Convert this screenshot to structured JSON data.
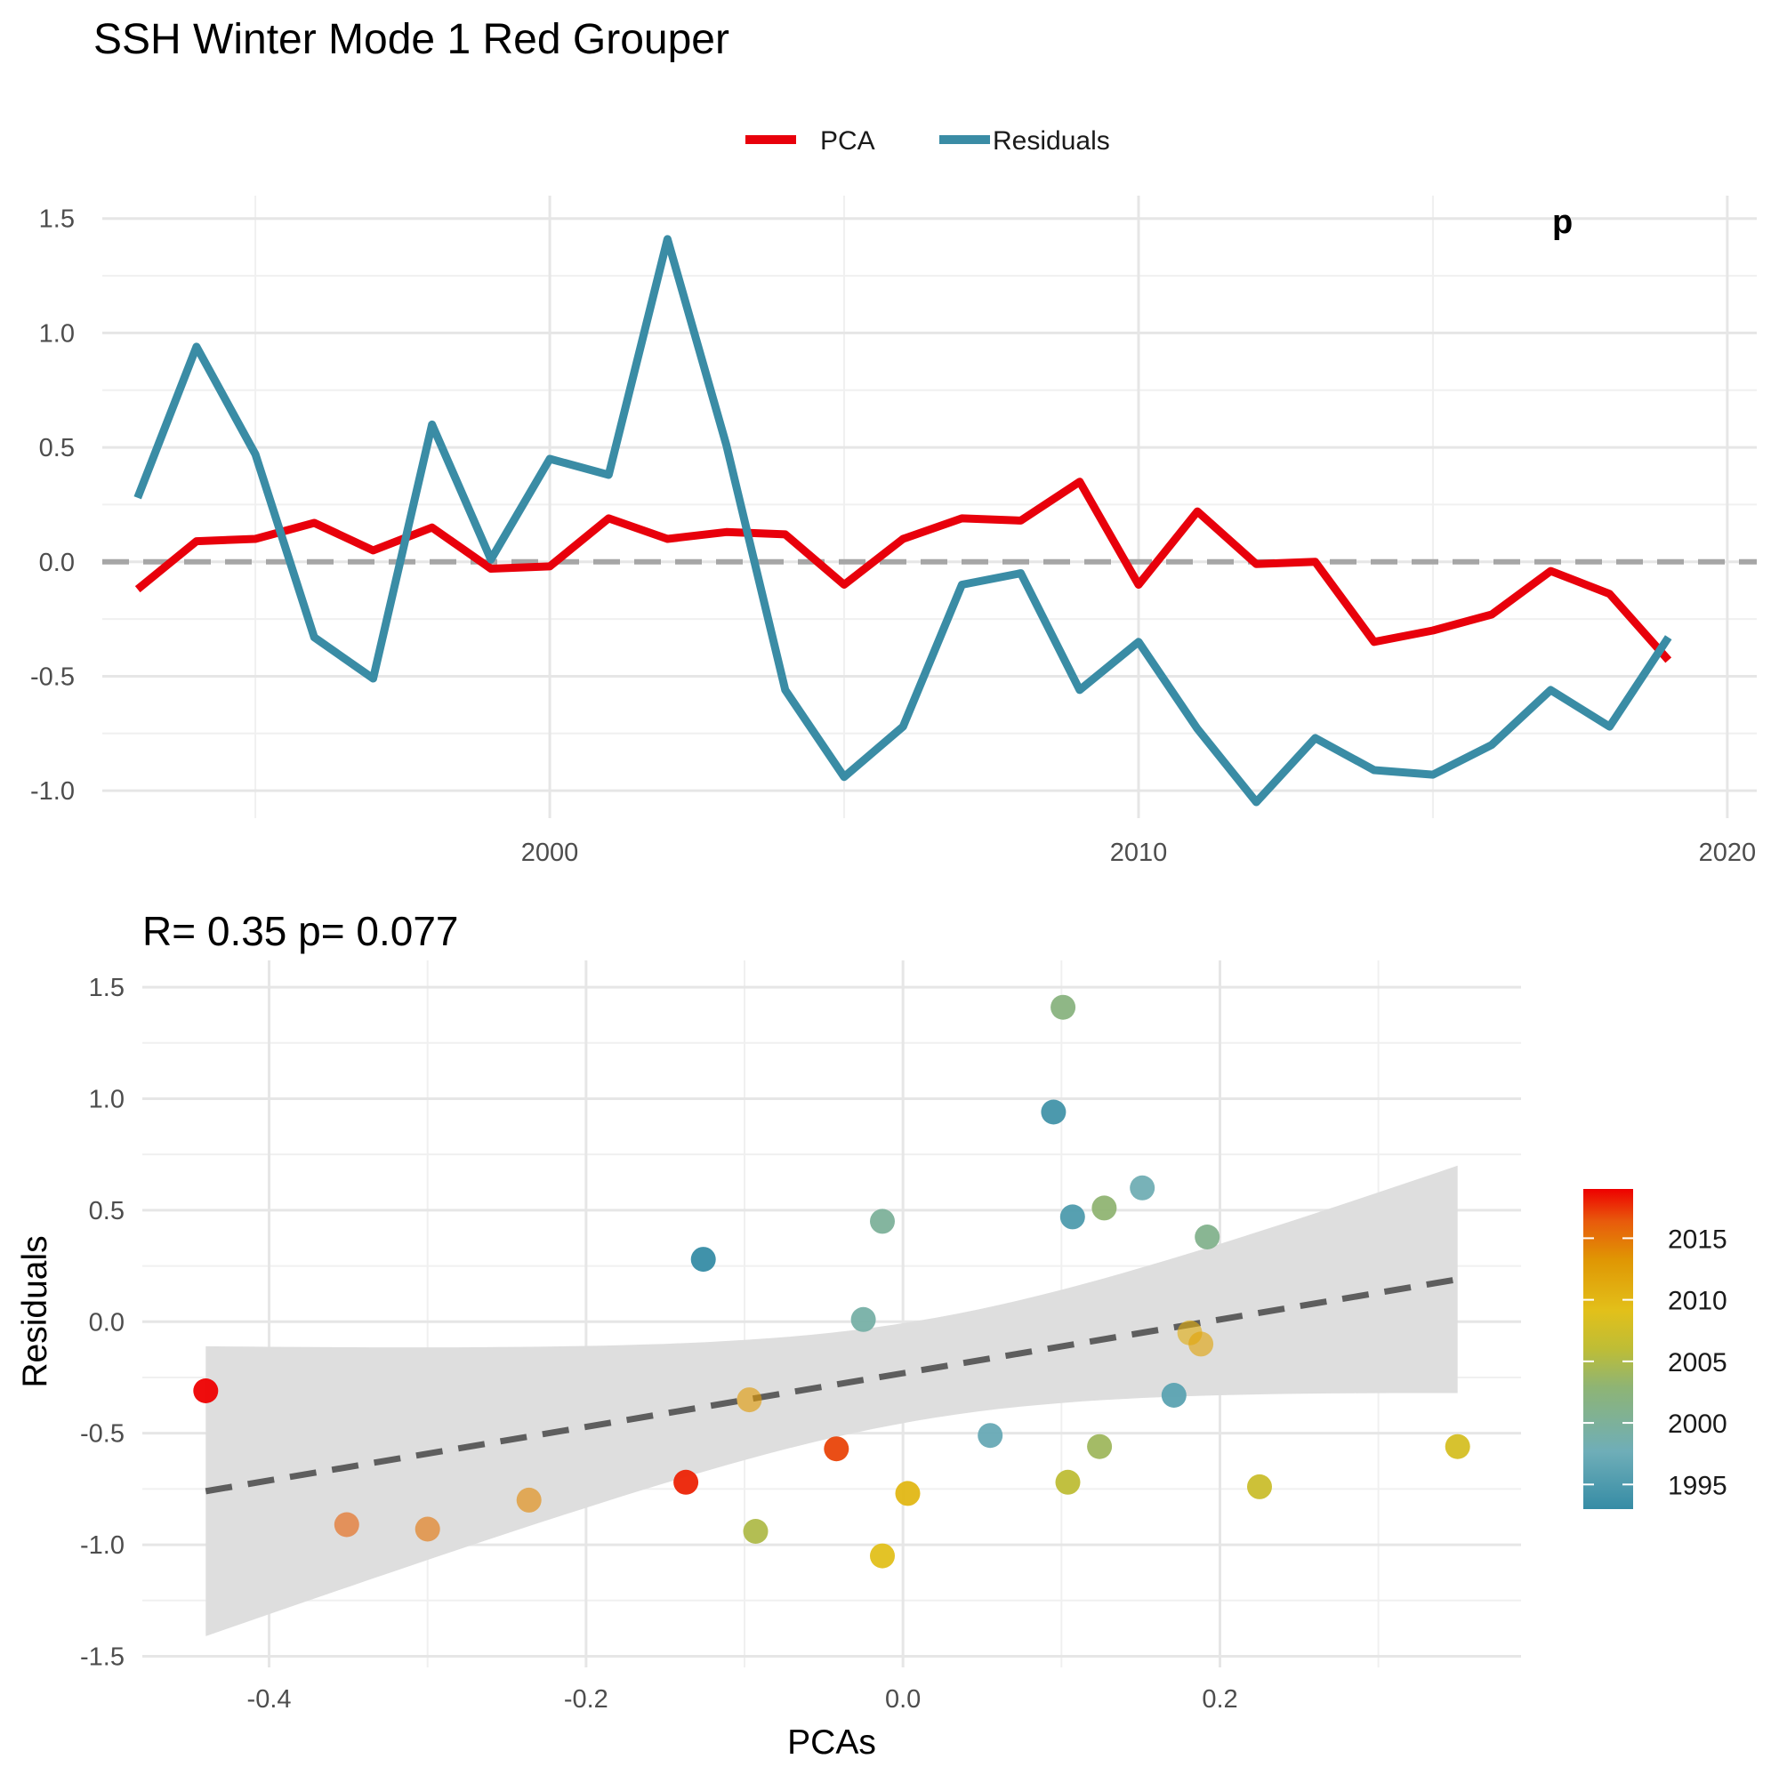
{
  "figure_title": "SSH Winter Mode 1 Red Grouper",
  "colors": {
    "pca": "#e8000b",
    "residuals": "#3a8ca5",
    "zero_line": "#a6a6a6",
    "fit_line": "#5e5e5e",
    "ribbon": "#dedede"
  },
  "chart_data": [
    {
      "type": "line",
      "title": "SSH Winter Mode 1 Red Grouper",
      "xlabel": "",
      "ylabel": "",
      "xlim": [
        1992.4,
        2020.5
      ],
      "ylim": [
        -1.12,
        1.6
      ],
      "x_ticks": [
        2000,
        2010,
        2020
      ],
      "x_tick_labels": [
        "2000",
        "2010",
        "2020"
      ],
      "y_ticks": [
        -1.0,
        -0.5,
        0.0,
        0.5,
        1.0,
        1.5
      ],
      "y_tick_labels": [
        "-1.0",
        "-0.5",
        "0.0",
        "0.5",
        "1.0",
        "1.5"
      ],
      "reference_line": {
        "y": 0,
        "style": "dashed"
      },
      "legend": {
        "position": "top",
        "entries": [
          "PCA",
          "Residuals"
        ]
      },
      "grid": true,
      "x": [
        1993,
        1994,
        1995,
        1996,
        1997,
        1998,
        1999,
        2000,
        2001,
        2002,
        2003,
        2004,
        2005,
        2006,
        2007,
        2008,
        2009,
        2010,
        2011,
        2012,
        2013,
        2014,
        2015,
        2016,
        2017,
        2018,
        2019
      ],
      "series": [
        {
          "name": "PCA",
          "values": [
            -0.12,
            0.09,
            0.1,
            0.17,
            0.05,
            0.15,
            -0.03,
            -0.02,
            0.19,
            0.1,
            0.13,
            0.12,
            -0.1,
            0.1,
            0.19,
            0.18,
            0.35,
            -0.1,
            0.22,
            -0.01,
            0.0,
            -0.35,
            -0.3,
            -0.23,
            -0.04,
            -0.14,
            -0.43
          ]
        },
        {
          "name": "Residuals",
          "values": [
            0.28,
            0.94,
            0.47,
            -0.33,
            -0.51,
            0.6,
            0.01,
            0.45,
            0.38,
            1.41,
            0.51,
            -0.56,
            -0.94,
            -0.72,
            -0.1,
            -0.05,
            -0.56,
            -0.35,
            -0.73,
            -1.05,
            -0.77,
            -0.91,
            -0.93,
            -0.8,
            -0.56,
            -0.72,
            -0.33
          ]
        }
      ],
      "corner_text": "p"
    },
    {
      "type": "scatter",
      "title": "R= 0.35  p= 0.077",
      "xlabel": "PCAs",
      "ylabel": "Residuals",
      "xlim": [
        -0.48,
        0.39
      ],
      "ylim": [
        -1.55,
        1.62
      ],
      "x_ticks": [
        -0.4,
        -0.2,
        0.0,
        0.2
      ],
      "x_tick_labels": [
        "-0.4",
        "-0.2",
        "0.0",
        "0.2"
      ],
      "y_ticks": [
        -1.5,
        -1.0,
        -0.5,
        0.0,
        0.5,
        1.0,
        1.5
      ],
      "y_tick_labels": [
        "-1.5",
        "-1.0",
        "-0.5",
        "0.0",
        "0.5",
        "1.0",
        "1.5"
      ],
      "grid": true,
      "color_scale": {
        "variable": "year",
        "min": 1993,
        "max": 2019,
        "ticks": [
          "2015",
          "2010",
          "2005",
          "2000",
          "1995"
        ],
        "tick_values": [
          2015,
          2010,
          2005,
          2000,
          1995
        ],
        "legend_position": "right"
      },
      "fit": {
        "type": "linear",
        "style": "dashed",
        "x": [
          -0.44,
          0.35
        ],
        "y": [
          -0.76,
          0.19
        ],
        "ci_lower": [
          -1.4,
          -0.32
        ],
        "ci_upper": [
          -0.1,
          0.7
        ]
      },
      "points": [
        {
          "x": -0.126,
          "y": 0.28,
          "year": 1993
        },
        {
          "x": 0.095,
          "y": 0.94,
          "year": 1994
        },
        {
          "x": 0.107,
          "y": 0.47,
          "year": 1995
        },
        {
          "x": 0.171,
          "y": -0.33,
          "year": 1996
        },
        {
          "x": 0.055,
          "y": -0.51,
          "year": 1997
        },
        {
          "x": 0.151,
          "y": 0.6,
          "year": 1998
        },
        {
          "x": -0.025,
          "y": 0.01,
          "year": 1999
        },
        {
          "x": -0.013,
          "y": 0.45,
          "year": 2000
        },
        {
          "x": 0.192,
          "y": 0.38,
          "year": 2001
        },
        {
          "x": 0.101,
          "y": 1.41,
          "year": 2002
        },
        {
          "x": 0.127,
          "y": 0.51,
          "year": 2003
        },
        {
          "x": 0.124,
          "y": -0.56,
          "year": 2004
        },
        {
          "x": -0.093,
          "y": -0.94,
          "year": 2005
        },
        {
          "x": 0.104,
          "y": -0.72,
          "year": 2006
        },
        {
          "x": 0.225,
          "y": -0.74,
          "year": 2007
        },
        {
          "x": 0.35,
          "y": -0.56,
          "year": 2008
        },
        {
          "x": -0.013,
          "y": -1.05,
          "year": 2009
        },
        {
          "x": 0.003,
          "y": -0.77,
          "year": 2010
        },
        {
          "x": 0.181,
          "y": -0.05,
          "year": 2011
        },
        {
          "x": 0.188,
          "y": -0.1,
          "year": 2012
        },
        {
          "x": -0.097,
          "y": -0.35,
          "year": 2013
        },
        {
          "x": -0.236,
          "y": -0.8,
          "year": 2014
        },
        {
          "x": -0.3,
          "y": -0.93,
          "year": 2015
        },
        {
          "x": -0.351,
          "y": -0.91,
          "year": 2016
        },
        {
          "x": -0.042,
          "y": -0.57,
          "year": 2017
        },
        {
          "x": -0.137,
          "y": -0.72,
          "year": 2018
        },
        {
          "x": -0.44,
          "y": -0.31,
          "year": 2019
        }
      ]
    }
  ]
}
